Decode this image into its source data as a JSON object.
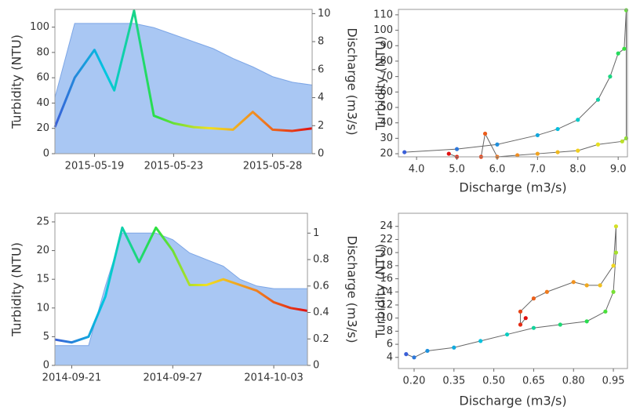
{
  "chart_data": [
    {
      "type": "line",
      "ylabel": "Turbidity (NTU)",
      "y2label": "Discharge (m3/s)",
      "x": [
        "2015-05-17",
        "2015-05-18",
        "2015-05-19",
        "2015-05-20",
        "2015-05-21",
        "2015-05-22",
        "2015-05-23",
        "2015-05-24",
        "2015-05-25",
        "2015-05-26",
        "2015-05-27",
        "2015-05-28",
        "2015-05-29",
        "2015-05-30"
      ],
      "xlim": [
        "2015-05-17",
        "2015-05-30"
      ],
      "xticks": [
        "2015-05-19",
        "2015-05-23",
        "2015-05-28"
      ],
      "ylim": [
        0,
        114
      ],
      "yticks": [
        0,
        20,
        40,
        60,
        80,
        100
      ],
      "y2lim": [
        0,
        10.3
      ],
      "y2ticks": [
        0,
        2,
        4,
        6,
        8,
        10
      ],
      "series": [
        {
          "type": "area",
          "axis": "y2",
          "color": "#a9c7f3",
          "values": [
            4,
            9.3,
            9.3,
            9.3,
            9.3,
            9.0,
            8.5,
            8.0,
            7.5,
            6.8,
            6.2,
            5.5,
            5.1,
            4.9
          ]
        },
        {
          "type": "line",
          "colormap": [
            "#3a5fd8",
            "#00c8e0",
            "#2de040",
            "#f0e020",
            "#f08020",
            "#e01010"
          ],
          "values": [
            21,
            60,
            82,
            50,
            113,
            30,
            24,
            21,
            20,
            19,
            33,
            19,
            18,
            20
          ]
        }
      ]
    },
    {
      "type": "scatter",
      "ylabel": "Turbidity (NTU)",
      "xlabel": "Discharge (m3/s)",
      "x": [
        3.7,
        5,
        6,
        7,
        7.5,
        8,
        8.5,
        8.8,
        9.0,
        9.15,
        9.2,
        9.2,
        9.1,
        8.5,
        8.0,
        7.5,
        7,
        6.5,
        6,
        5.7,
        5.6,
        5,
        4.8
      ],
      "xlim": [
        3.55,
        9.23
      ],
      "xticks": [
        {
          "value": 4,
          "label": "4.0"
        },
        {
          "value": 5,
          "label": "5.0"
        },
        {
          "value": 6,
          "label": "6.0"
        },
        {
          "value": 7,
          "label": "7.0"
        },
        {
          "value": 8,
          "label": "8.0"
        },
        {
          "value": 9,
          "label": "9.0"
        }
      ],
      "ylim": [
        18,
        113.5
      ],
      "yticks": [
        20,
        30,
        40,
        50,
        60,
        70,
        80,
        90,
        100,
        110
      ],
      "series": [
        {
          "line_color": "#666666",
          "colormap": [
            "#3a5fd8",
            "#00c8e0",
            "#2de040",
            "#f0e020",
            "#f08020",
            "#e01010"
          ],
          "values": [
            21,
            23,
            26,
            32,
            36,
            42,
            55,
            70,
            85,
            88,
            113,
            30,
            28,
            26,
            22,
            21,
            20,
            19,
            18,
            33,
            18,
            18,
            20
          ]
        }
      ]
    },
    {
      "type": "line",
      "ylabel": "Turbidity (NTU)",
      "y2label": "Discharge (m3/s)",
      "x": [
        "2014-09-20",
        "2014-09-21",
        "2014-09-22",
        "2014-09-23",
        "2014-09-24",
        "2014-09-25",
        "2014-09-26",
        "2014-09-27",
        "2014-09-28",
        "2014-09-29",
        "2014-09-30",
        "2014-10-01",
        "2014-10-02",
        "2014-10-03",
        "2014-10-04",
        "2014-10-05"
      ],
      "xlim": [
        "2014-09-20",
        "2014-10-05"
      ],
      "xticks": [
        "2014-09-21",
        "2014-09-27",
        "2014-10-03"
      ],
      "ylim": [
        0,
        26.5
      ],
      "yticks": [
        0,
        5,
        10,
        15,
        20,
        25
      ],
      "y2lim": [
        0,
        1.15
      ],
      "y2ticks": [
        0,
        0.2,
        0.4,
        0.6,
        0.8,
        1
      ],
      "series": [
        {
          "type": "area",
          "axis": "y2",
          "color": "#a9c7f3",
          "values": [
            0.15,
            0.15,
            0.15,
            0.6,
            1.0,
            1.0,
            1.0,
            0.95,
            0.85,
            0.8,
            0.75,
            0.65,
            0.6,
            0.58,
            0.58,
            0.58
          ]
        },
        {
          "type": "line",
          "colormap": [
            "#3a5fd8",
            "#00c8e0",
            "#2de040",
            "#f0e020",
            "#f08020",
            "#e01010"
          ],
          "values": [
            4.5,
            4,
            5,
            12,
            24,
            18,
            24,
            20,
            14,
            14,
            15,
            14,
            13,
            11,
            10,
            9.5
          ]
        }
      ]
    },
    {
      "type": "scatter",
      "ylabel": "Turbidity (NTU)",
      "xlabel": "Discharge (m3/s)",
      "x": [
        0.17,
        0.2,
        0.25,
        0.35,
        0.45,
        0.55,
        0.65,
        0.75,
        0.85,
        0.92,
        0.95,
        0.96,
        0.96,
        0.95,
        0.9,
        0.85,
        0.8,
        0.7,
        0.65,
        0.6,
        0.6,
        0.62
      ],
      "xlim": [
        0.141,
        1.003
      ],
      "xticks": [
        {
          "value": 0.2,
          "label": "0.20"
        },
        {
          "value": 0.35,
          "label": "0.35"
        },
        {
          "value": 0.5,
          "label": "0.50"
        },
        {
          "value": 0.65,
          "label": "0.65"
        },
        {
          "value": 0.8,
          "label": "0.80"
        },
        {
          "value": 0.95,
          "label": "0.95"
        }
      ],
      "ylim": [
        2.3,
        26
      ],
      "yticks": [
        4,
        6,
        8,
        10,
        12,
        14,
        16,
        18,
        20,
        22,
        24
      ],
      "series": [
        {
          "line_color": "#666666",
          "colormap": [
            "#3a5fd8",
            "#00c8e0",
            "#2de040",
            "#f0e020",
            "#f08020",
            "#e01010"
          ],
          "values": [
            4.5,
            4,
            5,
            5.5,
            6.5,
            7.5,
            8.5,
            9,
            9.5,
            11,
            14,
            20,
            24,
            18,
            15,
            15,
            15.5,
            14,
            13,
            11,
            9,
            10
          ]
        }
      ]
    }
  ]
}
